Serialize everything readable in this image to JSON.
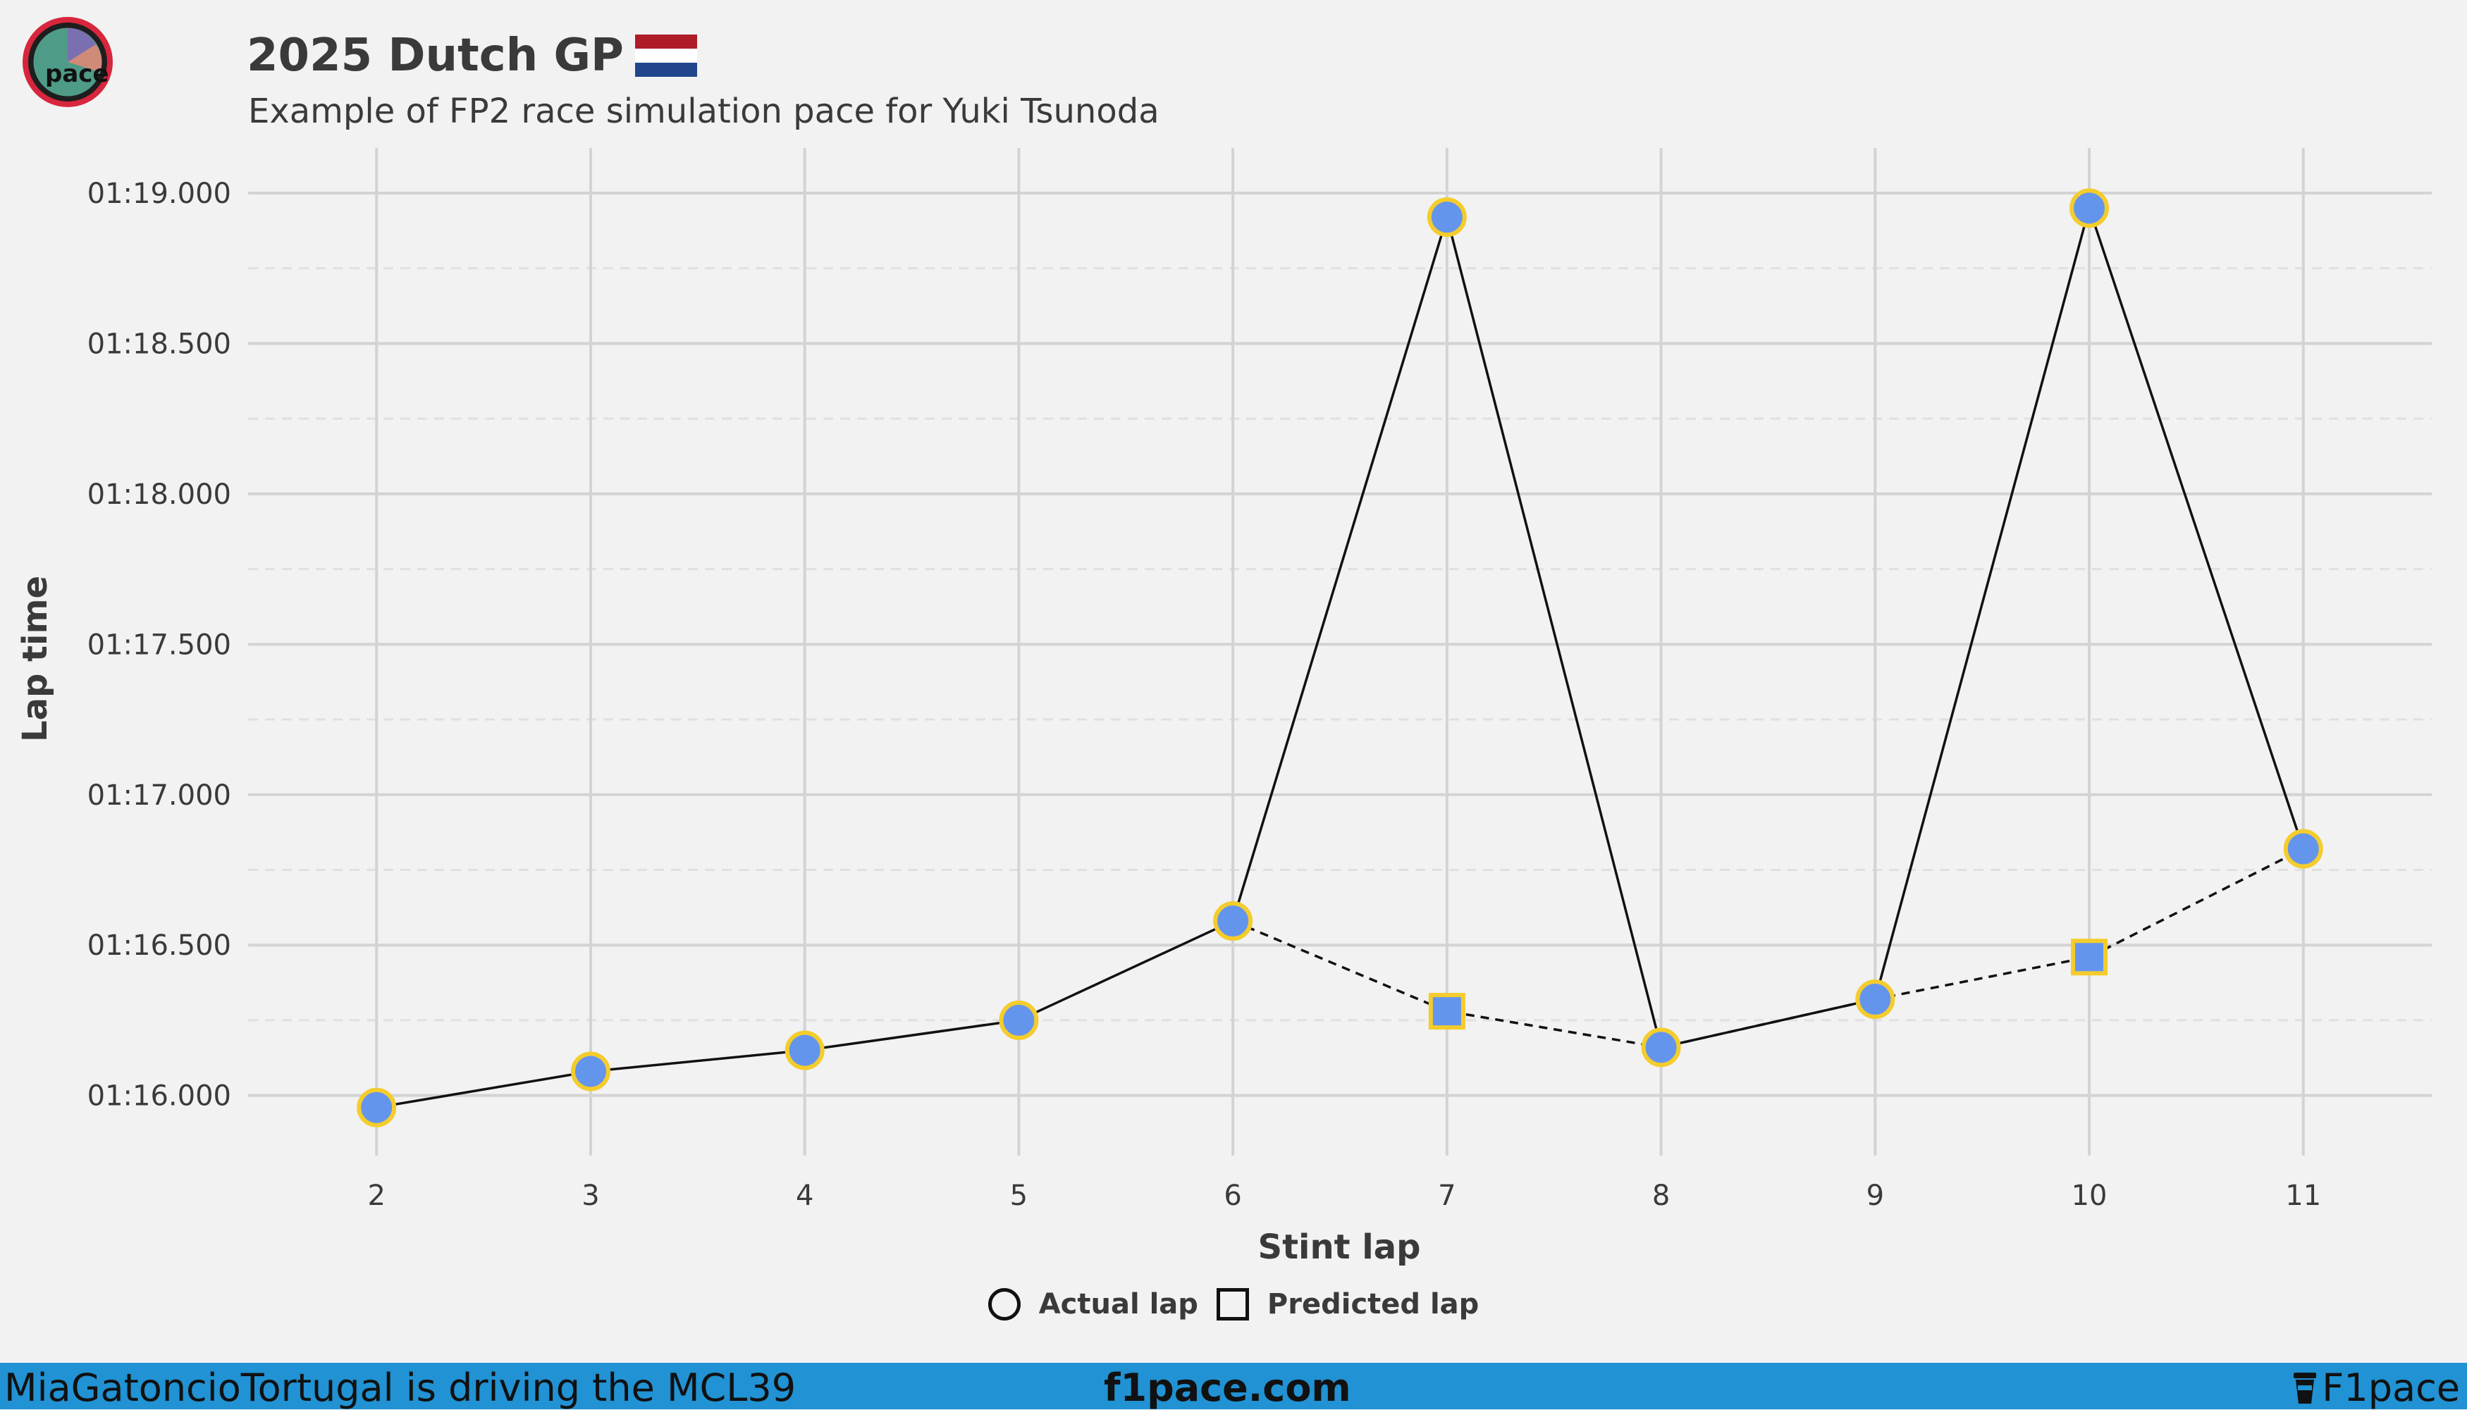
{
  "header": {
    "title": "2025 Dutch GP",
    "subtitle": "Example of FP2 race simulation pace for Yuki Tsunoda"
  },
  "logo": {
    "icon": "pace-logo-icon",
    "text": "pace"
  },
  "flag": {
    "icon": "netherlands-flag-icon",
    "colors": [
      "#ae1c28",
      "#ffffff",
      "#21468b"
    ]
  },
  "legend": {
    "actual_label": "Actual lap",
    "predicted_label": "Predicted lap"
  },
  "footer": {
    "left_text": "MiaGatoncioTortugal is driving the MCL39",
    "center_text": "f1pace.com",
    "right_text": "F1pace",
    "right_icon": "cup-icon",
    "bar_color": "#2192d3"
  },
  "chart_data": {
    "type": "line",
    "xlabel": "Stint lap",
    "ylabel": "Lap time",
    "x": [
      2,
      3,
      4,
      5,
      6,
      7,
      8,
      9,
      10,
      11
    ],
    "xlim": [
      1.4,
      11.6
    ],
    "ylim": [
      75.8,
      79.15
    ],
    "yticks": [
      76.0,
      76.5,
      77.0,
      77.5,
      78.0,
      78.5,
      79.0
    ],
    "ytick_labels": [
      "01:16.000",
      "01:16.500",
      "01:17.000",
      "01:17.500",
      "01:18.000",
      "01:18.500",
      "01:19.000"
    ],
    "grid": true,
    "legend_position": "bottom",
    "series": [
      {
        "name": "Actual lap",
        "marker": "circle",
        "line": "solid",
        "x": [
          2,
          3,
          4,
          5,
          6,
          7,
          8,
          9,
          10,
          11
        ],
        "y": [
          75.96,
          76.08,
          76.15,
          76.25,
          76.58,
          78.92,
          76.16,
          76.32,
          78.95,
          76.82
        ]
      },
      {
        "name": "Predicted lap",
        "marker": "square",
        "line": "dashed",
        "x": [
          6,
          7,
          8,
          9,
          10,
          11
        ],
        "y": [
          76.58,
          76.28,
          76.16,
          76.32,
          76.46,
          76.82
        ],
        "marker_points": [
          7,
          10
        ]
      }
    ],
    "colors": {
      "marker_fill": "#6495ed",
      "marker_edge": "#f4cc2c",
      "line": "#111111",
      "grid": "#d3d3d3",
      "grid_minor": "#e0e0e0"
    }
  }
}
